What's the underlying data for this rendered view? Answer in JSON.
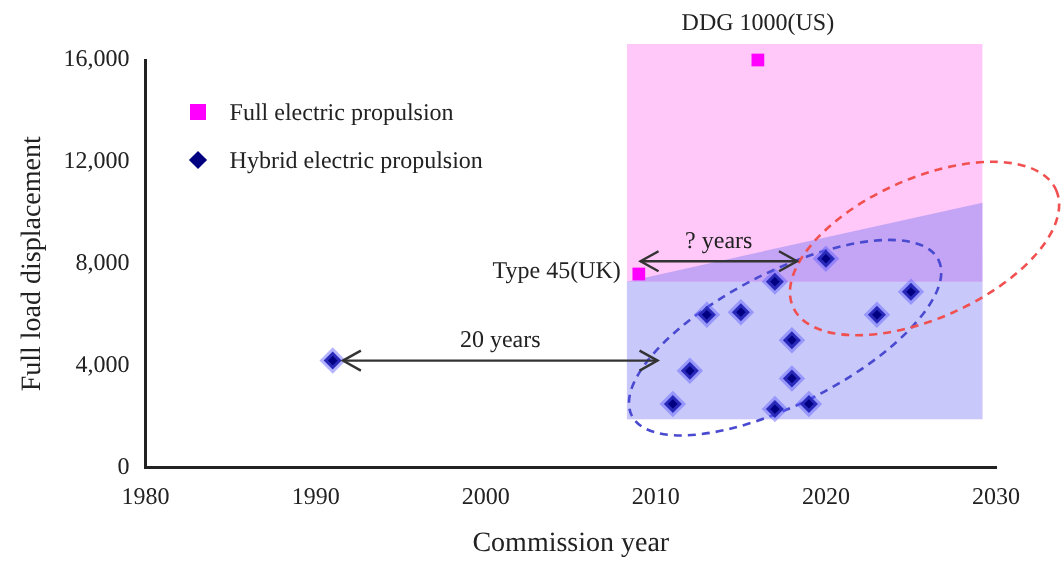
{
  "chart_data": {
    "type": "scatter",
    "xlabel": "Commission year",
    "ylabel": "Full load displacement",
    "xlim": [
      1980,
      2030
    ],
    "xticks": [
      1980,
      1990,
      2000,
      2010,
      2020,
      2030
    ],
    "ylim": [
      0,
      16000
    ],
    "yticks": [
      0,
      {
        "value": 4000,
        "label": "4,000"
      },
      {
        "value": 8000,
        "label": "8,000"
      },
      {
        "value": 12000,
        "label": "12,000"
      },
      {
        "value": 16000,
        "label": "16,000"
      }
    ],
    "grid": false,
    "legend": "top left",
    "series": [
      {
        "name": "Full electric propulsion",
        "color": "#ff00ff",
        "marker": "square",
        "x": [
          2009,
          2016
        ],
        "values": [
          7600,
          16000
        ]
      },
      {
        "name": "Hybrid electric propulsion",
        "color": "#000080",
        "marker": "diamond",
        "x": [
          1991,
          2011,
          2012,
          2013,
          2015,
          2017,
          2017,
          2018,
          2018,
          2019,
          2020,
          2023,
          2025
        ],
        "values": [
          4200,
          2500,
          3800,
          6000,
          6100,
          7300,
          2300,
          5000,
          3500,
          2500,
          8200,
          6000,
          6900
        ]
      }
    ],
    "annotations": [
      {
        "text": "DDG 1000(US)",
        "x": 2016,
        "y": 16000
      },
      {
        "text": "Type 45(UK)",
        "x": 2009,
        "y": 7600
      },
      "20 years",
      "? years"
    ]
  }
}
